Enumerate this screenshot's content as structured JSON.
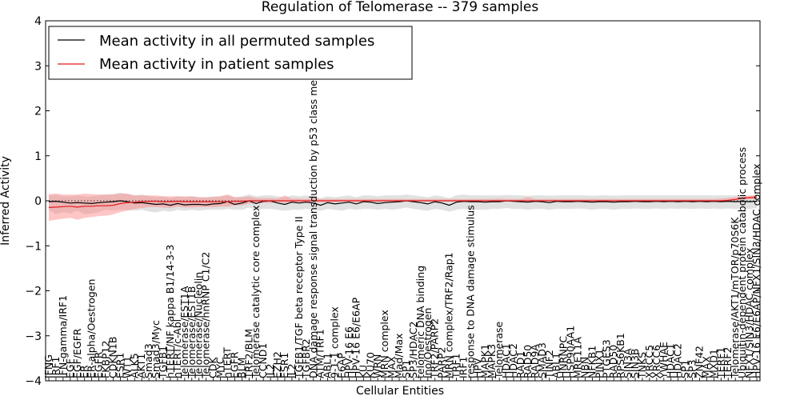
{
  "chart_data": {
    "type": "line",
    "title": "Regulation of Telomerase -- 379 samples",
    "xlabel": "Cellular Entities",
    "ylabel": "Inferred Activity",
    "ylim": [
      -4,
      4
    ],
    "yticks": [
      "−4",
      "−3",
      "−2",
      "−1",
      "0",
      "1",
      "2",
      "3",
      "4"
    ],
    "grid": false,
    "legend_position": "top-left",
    "colors": {
      "all": "#000000",
      "all_band": "#c8c8c8",
      "patient": "#e31a1c",
      "patient_band": "#ff8080"
    },
    "categories": [
      "IFNG",
      "IRF1",
      "IFN-gamma/IRF1",
      "EGF",
      "EGF/EGFR",
      "ER",
      "ER-alpha/Oestrogen",
      "EGFR",
      "FKBP12",
      "CDKN1B",
      "ESR1",
      "WT1",
      "ALK5",
      "AKT1",
      "Smad3",
      "Smad3/Myc",
      "TGFB1",
      "hTERT/NF kappa B1/14-3-3",
      "hTERT/c-Abl",
      "Telomerase/EST1A",
      "Telomerase/EST1B",
      "Telomerase/Nucleolin",
      "Telomerase/hnRNP C1/C2",
      "CDK",
      "MYC",
      "hTERT",
      "EGFR",
      "BLM",
      "TRF2/BLM",
      "Telomerase catalytic core complex",
      "CCND1",
      "IL2",
      "EZH2",
      "ESR1",
      "IL2",
      "TGFB1/TGF beta receptor Type II",
      "TGFBR2",
      "DNA damage response signal transduction by p53 class mediator",
      "ATM/TRF1",
      "ABL1",
      "9-1-1 complex",
      "E6AP",
      "HPV-16 E6",
      "HPV-16 E6/E6AP",
      "KU",
      "KU70",
      "WRN",
      "MRN complex",
      "MAX",
      "Mad/Max",
      "SP1",
      "SP3/HDAC2",
      "telomeric DNA binding",
      "Ino/Oestrogen",
      "TRF2/PARP2",
      "PARP2",
      "MRN complex/TRF2/Rap1",
      "TRF1",
      "IRF1",
      "response to DNA damage stimulus",
      "HPV",
      "MAPK1",
      "MAPK3",
      "Telomerase",
      "HDAC1",
      "HDAC2",
      "RAD1",
      "RAD50",
      "RAD9A",
      "SMAD3",
      "TINF2",
      "ABL1",
      "HNRNPC",
      "HSP90AA1",
      "MRE11A",
      "NBN",
      "NFKB1",
      "PINX1",
      "PTGES3",
      "RAD50",
      "RPS6KB1",
      "SIN3A",
      "SIN3B",
      "TNKS",
      "XRCC5",
      "XRCC6",
      "YWHAE",
      "HDAC1",
      "HDAC2",
      "SP1",
      "SP3",
      "ZNF42",
      "MAX",
      "MXD1",
      "TERF1",
      "TERF2",
      "Telomerase/AKT1/mTOR/p70S6K",
      "Ubiquitin-dependent protein catabolic process",
      "NFX1/SIN3/HDAC complex",
      "HPV-16 E6/E6AP/NFX1/SIN3/HDAC complex"
    ],
    "entity_labels": [
      "IFNG",
      "IRF1",
      "IFN-gamma/IRF1",
      "EGF",
      "EGF/EGFR",
      "ER",
      "ER-alpha/Oestrogen",
      "EGFR",
      "FKBP12",
      "CDKN1B",
      "ESR1",
      "WT1",
      "ALK5",
      "AKT1",
      "Smad3",
      "Smad3/Myc",
      "TGFB1",
      "hTERT/NF kappa B1/14-3-3",
      "hTERT/c-Abl",
      "Telomerase/EST1A",
      "Telomerase/EST1B",
      "Telomerase/Nucleolin",
      "Telomerase/hnRNP C1/C2",
      "CDK",
      "MYC",
      "hTERT",
      "EGFR",
      "BLM",
      "TRF2/BLM",
      "Telomerase catalytic core complex",
      "CCND1",
      "IL2",
      "EZH2",
      "ESR1",
      "IL2",
      "TGFB1/TGF beta receptor Type II",
      "TGFBR2",
      "DNA damage response signal transduction by p53 class mediator",
      "ATM/TRF1",
      "ABL1",
      "9-1-1 complex",
      "E6AP",
      "HPV-16 E6",
      "HPV-16 E6/E6AP",
      "KU",
      "KU70",
      "WRN",
      "MRN complex",
      "MAX",
      "Mad/Max",
      "SP1",
      "SP3/HDAC2",
      "telomeric DNA binding",
      "Ino/Oestrogen",
      "TRF2/PARP2",
      "PARP2",
      "MRN complex/TRF2/Rap1",
      "TRF1",
      "IRF1",
      "response to DNA damage stimulus",
      "HPV",
      "MAPK1",
      "MAPK3",
      "Telomerase",
      "HDAC1",
      "HDAC2",
      "RAD1",
      "RAD50",
      "RAD9A",
      "SMAD3",
      "TINF2",
      "ABL1",
      "HNRNPC",
      "HSP90AA1",
      "MRE11A",
      "NBN",
      "NFKB1",
      "PINX1",
      "PTGES3",
      "RAD50",
      "RPS6KB1",
      "SIN3A",
      "SIN3B",
      "TNKS",
      "XRCC5",
      "XRCC6",
      "YWHAE",
      "HDAC1",
      "HDAC2",
      "SP1",
      "SP3",
      "ZNF42",
      "MAX",
      "MXD1",
      "TERF1",
      "TERF2",
      "Telomerase/AKT1/mTOR/p70S6K",
      "Ubiquitin-dependent protein catabolic process",
      "NFX1/SIN3/HDAC complex",
      "HPV-16 E6/E6AP/NFX1/SIN3/HDAC complex"
    ],
    "series": [
      {
        "name": "Mean activity in all permuted samples",
        "values": [
          -0.02,
          -0.01,
          -0.03,
          -0.05,
          -0.04,
          -0.05,
          -0.06,
          -0.04,
          -0.03,
          -0.02,
          0.0,
          -0.02,
          -0.05,
          -0.04,
          -0.06,
          -0.08,
          -0.07,
          -0.1,
          -0.06,
          -0.09,
          -0.08,
          -0.08,
          -0.09,
          -0.07,
          -0.06,
          -0.02,
          -0.08,
          -0.05,
          0.0,
          -0.06,
          -0.01,
          0.0,
          -0.05,
          -0.08,
          -0.03,
          -0.05,
          -0.03,
          -0.05,
          -0.1,
          -0.04,
          -0.07,
          -0.05,
          -0.03,
          -0.07,
          -0.02,
          -0.03,
          -0.06,
          -0.04,
          -0.03,
          -0.02,
          0.0,
          -0.02,
          -0.04,
          -0.07,
          -0.02,
          -0.05,
          -0.1,
          -0.03,
          -0.01,
          -0.02,
          -0.02,
          -0.03,
          -0.02,
          -0.02,
          0.0,
          -0.01,
          -0.02,
          -0.03,
          -0.01,
          -0.02,
          -0.04,
          -0.01,
          -0.02,
          -0.02,
          -0.01,
          -0.02,
          -0.03,
          -0.02,
          -0.02,
          -0.03,
          -0.02,
          -0.02,
          -0.01,
          -0.02,
          -0.02,
          -0.01,
          -0.02,
          -0.01,
          -0.02,
          -0.01,
          -0.02,
          -0.01,
          -0.02,
          -0.01,
          -0.02,
          -0.01,
          -0.02,
          -0.01,
          -0.02,
          -0.01
        ],
        "lower": [
          -0.2,
          -0.3,
          -0.25,
          -0.28,
          -0.22,
          -0.3,
          -0.28,
          -0.25,
          -0.2,
          -0.22,
          -0.2,
          -0.2,
          -0.22,
          -0.2,
          -0.24,
          -0.26,
          -0.22,
          -0.24,
          -0.2,
          -0.22,
          -0.2,
          -0.22,
          -0.2,
          -0.2,
          -0.2,
          -0.18,
          -0.2,
          -0.2,
          -0.15,
          -0.2,
          -0.18,
          -0.18,
          -0.2,
          -0.22,
          -0.2,
          -0.2,
          -0.18,
          -0.2,
          -0.22,
          -0.18,
          -0.2,
          -0.22,
          -0.18,
          -0.2,
          -0.18,
          -0.18,
          -0.2,
          -0.18,
          -0.2,
          -0.18,
          -0.15,
          -0.18,
          -0.2,
          -0.22,
          -0.18,
          -0.2,
          -0.24,
          -0.2,
          -0.18,
          -0.2,
          -0.2,
          -0.2,
          -0.18,
          -0.18,
          -0.16,
          -0.18,
          -0.18,
          -0.2,
          -0.18,
          -0.18,
          -0.2,
          -0.18,
          -0.18,
          -0.18,
          -0.17,
          -0.18,
          -0.2,
          -0.18,
          -0.18,
          -0.2,
          -0.18,
          -0.18,
          -0.17,
          -0.18,
          -0.18,
          -0.17,
          -0.18,
          -0.17,
          -0.18,
          -0.17,
          -0.18,
          -0.17,
          -0.18,
          -0.17,
          -0.18,
          -0.17,
          -0.18,
          -0.17,
          -0.18,
          -0.16
        ],
        "upper": [
          0.12,
          0.14,
          0.1,
          0.1,
          0.12,
          0.1,
          0.1,
          0.12,
          0.14,
          0.15,
          0.18,
          0.15,
          0.12,
          0.14,
          0.1,
          0.08,
          0.1,
          0.06,
          0.1,
          0.08,
          0.1,
          0.08,
          0.08,
          0.1,
          0.1,
          0.12,
          0.08,
          0.1,
          0.14,
          0.1,
          0.12,
          0.12,
          0.1,
          0.08,
          0.12,
          0.1,
          0.12,
          0.1,
          0.06,
          0.1,
          0.08,
          0.1,
          0.12,
          0.08,
          0.12,
          0.12,
          0.1,
          0.12,
          0.12,
          0.12,
          0.14,
          0.12,
          0.1,
          0.08,
          0.12,
          0.1,
          0.06,
          0.12,
          0.14,
          0.12,
          0.12,
          0.12,
          0.12,
          0.12,
          0.13,
          0.12,
          0.12,
          0.11,
          0.12,
          0.12,
          0.11,
          0.12,
          0.12,
          0.12,
          0.12,
          0.12,
          0.11,
          0.12,
          0.12,
          0.11,
          0.12,
          0.12,
          0.12,
          0.12,
          0.12,
          0.12,
          0.12,
          0.12,
          0.12,
          0.12,
          0.12,
          0.12,
          0.12,
          0.12,
          0.12,
          0.12,
          0.12,
          0.12,
          0.12,
          0.13
        ]
      },
      {
        "name": "Mean activity in patient samples",
        "values": [
          -0.15,
          -0.14,
          -0.13,
          -0.12,
          -0.14,
          -0.12,
          -0.12,
          -0.11,
          -0.11,
          -0.1,
          -0.06,
          -0.04,
          -0.03,
          -0.02,
          -0.01,
          -0.01,
          -0.02,
          -0.02,
          -0.01,
          -0.02,
          -0.02,
          -0.02,
          -0.02,
          -0.02,
          -0.02,
          -0.02,
          -0.01,
          -0.01,
          0.0,
          0.0,
          0.0,
          0.0,
          0.0,
          0.0,
          0.0,
          0.0,
          0.0,
          0.0,
          0.0,
          0.0,
          0.0,
          0.0,
          0.0,
          0.0,
          0.0,
          0.0,
          0.0,
          0.0,
          0.0,
          0.0,
          0.0,
          0.0,
          0.0,
          0.0,
          0.0,
          0.0,
          0.0,
          0.0,
          0.0,
          0.0,
          0.0,
          0.0,
          0.0,
          0.0,
          0.0,
          0.0,
          0.0,
          0.0,
          0.0,
          0.0,
          0.0,
          0.0,
          0.0,
          0.0,
          0.0,
          0.0,
          0.0,
          0.0,
          0.0,
          0.0,
          0.0,
          0.0,
          0.0,
          0.0,
          0.0,
          0.0,
          0.0,
          0.0,
          0.0,
          0.0,
          0.0,
          0.0,
          0.0,
          0.0,
          0.0,
          0.01,
          0.03,
          0.06,
          0.07,
          0.08
        ],
        "lower": [
          -0.45,
          -0.42,
          -0.4,
          -0.38,
          -0.42,
          -0.38,
          -0.36,
          -0.34,
          -0.33,
          -0.3,
          -0.25,
          -0.22,
          -0.18,
          -0.16,
          -0.14,
          -0.14,
          -0.15,
          -0.16,
          -0.13,
          -0.15,
          -0.15,
          -0.14,
          -0.14,
          -0.14,
          -0.13,
          -0.13,
          -0.1,
          -0.1,
          -0.06,
          -0.06,
          -0.05,
          -0.05,
          -0.04,
          -0.04,
          -0.04,
          -0.03,
          -0.03,
          -0.03,
          -0.03,
          -0.03,
          -0.03,
          -0.02,
          -0.02,
          -0.03,
          -0.02,
          -0.02,
          -0.02,
          -0.02,
          -0.02,
          -0.02,
          -0.01,
          -0.02,
          -0.02,
          -0.02,
          -0.01,
          -0.02,
          -0.02,
          -0.02,
          -0.01,
          -0.01,
          -0.01,
          -0.01,
          -0.01,
          -0.01,
          -0.01,
          -0.01,
          -0.01,
          -0.01,
          -0.01,
          -0.01,
          -0.01,
          -0.01,
          -0.01,
          -0.01,
          -0.01,
          -0.01,
          -0.01,
          -0.01,
          -0.01,
          -0.01,
          -0.01,
          -0.01,
          -0.01,
          -0.01,
          -0.01,
          -0.01,
          -0.01,
          -0.01,
          -0.01,
          -0.01,
          -0.01,
          -0.01,
          -0.01,
          -0.01,
          -0.01,
          -0.01,
          0.0,
          0.02,
          0.03,
          0.04
        ],
        "upper": [
          0.15,
          0.16,
          0.14,
          0.14,
          0.14,
          0.16,
          0.15,
          0.14,
          0.14,
          0.14,
          0.16,
          0.16,
          0.12,
          0.12,
          0.12,
          0.12,
          0.1,
          0.1,
          0.1,
          0.1,
          0.1,
          0.08,
          0.08,
          0.08,
          0.1,
          0.14,
          0.08,
          0.08,
          0.1,
          0.06,
          0.06,
          0.06,
          0.05,
          0.12,
          0.05,
          0.05,
          0.04,
          0.06,
          0.04,
          0.04,
          0.04,
          0.04,
          0.04,
          0.04,
          0.04,
          0.04,
          0.04,
          0.04,
          0.04,
          0.04,
          0.04,
          0.04,
          0.04,
          0.04,
          0.04,
          0.04,
          0.04,
          0.04,
          0.04,
          0.04,
          0.04,
          0.04,
          0.04,
          0.05,
          0.04,
          0.04,
          0.04,
          0.08,
          0.04,
          0.04,
          0.04,
          0.04,
          0.04,
          0.04,
          0.04,
          0.04,
          0.04,
          0.04,
          0.04,
          0.04,
          0.04,
          0.04,
          0.04,
          0.04,
          0.04,
          0.04,
          0.04,
          0.04,
          0.04,
          0.04,
          0.04,
          0.04,
          0.04,
          0.04,
          0.05,
          0.06,
          0.08,
          0.1,
          0.11,
          0.12
        ]
      }
    ]
  }
}
